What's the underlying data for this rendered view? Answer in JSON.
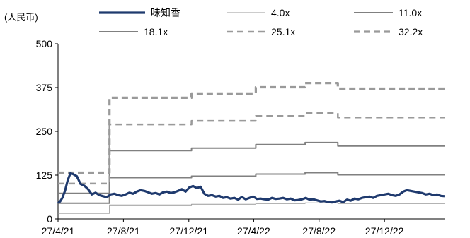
{
  "chart_data": {
    "type": "line",
    "unit_label": "(人民币)",
    "ylim": [
      0,
      500
    ],
    "yticks": [
      0,
      125,
      250,
      375,
      500
    ],
    "x_ticks": [
      "27/4/21",
      "27/8/21",
      "27/12/21",
      "27/4/22",
      "27/8/22",
      "27/12/22"
    ],
    "grid": false,
    "legend_position": "top",
    "series": [
      {
        "name": "味知香",
        "color": "#1f3a6e",
        "style": "solid-thick",
        "x": [
          "2021-04-27",
          "2021-05-01",
          "2021-05-05",
          "2021-05-10",
          "2021-05-15",
          "2021-05-20",
          "2021-05-25",
          "2021-06-01",
          "2021-06-08",
          "2021-06-15",
          "2021-06-22",
          "2021-06-29",
          "2021-07-06",
          "2021-07-13",
          "2021-07-20",
          "2021-07-27",
          "2021-08-03",
          "2021-08-10",
          "2021-08-17",
          "2021-08-24",
          "2021-08-31",
          "2021-09-07",
          "2021-09-14",
          "2021-09-21",
          "2021-09-28",
          "2021-10-05",
          "2021-10-12",
          "2021-10-19",
          "2021-10-26",
          "2021-11-02",
          "2021-11-09",
          "2021-11-16",
          "2021-11-23",
          "2021-11-30",
          "2021-12-07",
          "2021-12-14",
          "2021-12-21",
          "2021-12-28",
          "2022-01-04",
          "2022-01-11",
          "2022-01-18",
          "2022-01-25",
          "2022-02-01",
          "2022-02-08",
          "2022-02-15",
          "2022-02-22",
          "2022-03-01",
          "2022-03-08",
          "2022-03-15",
          "2022-03-22",
          "2022-03-29",
          "2022-04-05",
          "2022-04-12",
          "2022-04-19",
          "2022-04-26",
          "2022-05-03",
          "2022-05-10",
          "2022-05-17",
          "2022-05-24",
          "2022-05-31",
          "2022-06-07",
          "2022-06-14",
          "2022-06-21",
          "2022-06-28",
          "2022-07-05",
          "2022-07-12",
          "2022-07-19",
          "2022-07-26",
          "2022-08-02",
          "2022-08-09",
          "2022-08-16",
          "2022-08-23",
          "2022-08-30",
          "2022-09-06",
          "2022-09-13",
          "2022-09-20",
          "2022-09-27",
          "2022-10-04",
          "2022-10-11",
          "2022-10-18",
          "2022-10-25",
          "2022-11-01",
          "2022-11-08",
          "2022-11-15",
          "2022-11-22",
          "2022-11-29",
          "2022-12-06",
          "2022-12-13",
          "2022-12-20",
          "2022-12-27",
          "2023-01-03",
          "2023-01-10",
          "2023-01-17",
          "2023-01-24",
          "2023-01-31",
          "2023-02-07",
          "2023-02-14",
          "2023-02-21",
          "2023-02-28",
          "2023-03-07",
          "2023-03-14",
          "2023-03-21",
          "2023-03-28",
          "2023-04-04",
          "2023-04-11",
          "2023-04-18"
        ],
        "values": [
          45,
          50,
          60,
          80,
          110,
          130,
          128,
          122,
          100,
          95,
          85,
          70,
          75,
          68,
          65,
          62,
          70,
          72,
          68,
          66,
          70,
          75,
          72,
          78,
          82,
          80,
          76,
          72,
          74,
          70,
          76,
          78,
          74,
          76,
          80,
          85,
          78,
          90,
          94,
          88,
          92,
          72,
          66,
          68,
          64,
          66,
          60,
          62,
          58,
          60,
          55,
          63,
          56,
          60,
          64,
          57,
          58,
          56,
          55,
          60,
          57,
          58,
          60,
          56,
          58,
          53,
          54,
          56,
          60,
          55,
          56,
          53,
          50,
          51,
          48,
          47,
          50,
          52,
          48,
          55,
          52,
          58,
          56,
          60,
          62,
          64,
          60,
          66,
          68,
          70,
          72,
          68,
          66,
          70,
          78,
          82,
          80,
          78,
          76,
          74,
          70,
          72,
          68,
          70,
          66,
          65
        ]
      },
      {
        "name": "4.0x",
        "color": "#9a9a9a",
        "style": "solid-thin",
        "x": [
          "2021-04-27",
          "2021-07-31",
          "2021-08-01",
          "2021-12-31",
          "2022-01-01",
          "2022-04-30",
          "2022-05-01",
          "2022-07-31",
          "2022-08-01",
          "2022-09-30",
          "2022-10-01",
          "2023-04-18"
        ],
        "values": [
          16,
          16,
          40,
          40,
          42,
          42,
          44,
          44,
          46,
          46,
          44,
          44
        ]
      },
      {
        "name": "11.0x",
        "color": "#808080",
        "style": "solid",
        "x": [
          "2021-04-27",
          "2021-07-31",
          "2021-08-01",
          "2021-12-31",
          "2022-01-01",
          "2022-04-30",
          "2022-05-01",
          "2022-07-31",
          "2022-08-01",
          "2022-09-30",
          "2022-10-01",
          "2023-04-18"
        ],
        "values": [
          45,
          45,
          118,
          118,
          122,
          122,
          128,
          128,
          132,
          132,
          126,
          126
        ]
      },
      {
        "name": "18.1x",
        "color": "#808080",
        "style": "solid",
        "x": [
          "2021-04-27",
          "2021-07-31",
          "2021-08-01",
          "2021-12-31",
          "2022-01-01",
          "2022-04-30",
          "2022-05-01",
          "2022-07-31",
          "2022-08-01",
          "2022-09-30",
          "2022-10-01",
          "2023-04-18"
        ],
        "values": [
          73,
          73,
          195,
          195,
          202,
          202,
          212,
          212,
          218,
          218,
          208,
          208
        ]
      },
      {
        "name": "25.1x",
        "color": "#9a9a9a",
        "style": "dashed",
        "x": [
          "2021-04-27",
          "2021-07-31",
          "2021-08-01",
          "2021-12-31",
          "2022-01-01",
          "2022-04-30",
          "2022-05-01",
          "2022-07-31",
          "2022-08-01",
          "2022-09-30",
          "2022-10-01",
          "2023-04-18"
        ],
        "values": [
          101,
          101,
          270,
          270,
          280,
          280,
          294,
          294,
          302,
          302,
          290,
          290
        ]
      },
      {
        "name": "32.2x",
        "color": "#9a9a9a",
        "style": "dashed-thick",
        "x": [
          "2021-04-27",
          "2021-07-31",
          "2021-08-01",
          "2021-12-31",
          "2022-01-01",
          "2022-04-30",
          "2022-05-01",
          "2022-07-31",
          "2022-08-01",
          "2022-09-30",
          "2022-10-01",
          "2023-04-18"
        ],
        "values": [
          132,
          132,
          346,
          346,
          358,
          358,
          376,
          376,
          388,
          388,
          372,
          372
        ]
      }
    ]
  }
}
